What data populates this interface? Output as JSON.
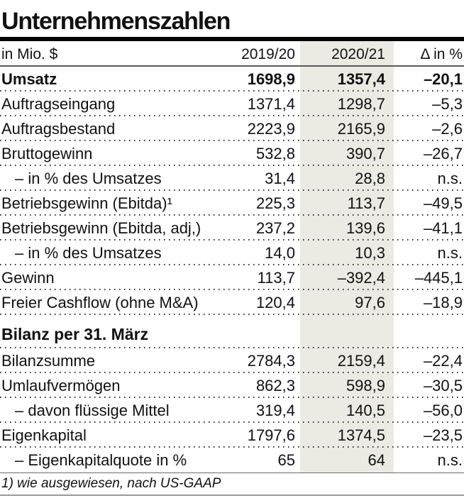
{
  "title": "Unternehmenszahlen",
  "header": {
    "unit_label": "in Mio. $",
    "columns": [
      "2019/20",
      "2020/21",
      "Δ in %"
    ]
  },
  "footnote": "1) wie ausgewiesen, nach US-GAAP",
  "colors": {
    "highlight_band": "#ebebe4",
    "heavy_rule": "#050505",
    "light_rule": "#6b6b6b",
    "text": "#111111"
  },
  "chart_data": {
    "type": "table",
    "title": "Unternehmenszahlen",
    "unit": "in Mio. $",
    "columns": [
      "2019/20",
      "2020/21",
      "Δ in %"
    ],
    "highlighted_column": "2020/21",
    "footnote": "1) wie ausgewiesen, nach US-GAAP",
    "rows": [
      {
        "label": "Umsatz",
        "bold": true,
        "values": [
          "1698,9",
          "1357,4",
          "–20,1"
        ]
      },
      {
        "label": "Auftragseingang",
        "values": [
          "1371,4",
          "1298,7",
          "–5,3"
        ]
      },
      {
        "label": "Auftragsbestand",
        "values": [
          "2223,9",
          "2165,9",
          "–2,6"
        ]
      },
      {
        "label": "Bruttogewinn",
        "values": [
          "532,8",
          "390,7",
          "–26,7"
        ]
      },
      {
        "label": "– in % des Umsatzes",
        "indent": true,
        "values": [
          "31,4",
          "28,8",
          "n.s."
        ]
      },
      {
        "label": "Betriebsgewinn (Ebitda)¹",
        "values": [
          "225,3",
          "113,7",
          "–49,5"
        ]
      },
      {
        "label": "Betriebsgewinn (Ebitda, adj,)",
        "values": [
          "237,2",
          "139,6",
          "–41,1"
        ]
      },
      {
        "label": "– in % des Umsatzes",
        "indent": true,
        "values": [
          "14,0",
          "10,3",
          "n.s."
        ]
      },
      {
        "label": "Gewinn",
        "values": [
          "113,7",
          "–392,4",
          "–445,1"
        ]
      },
      {
        "label": "Freier Cashflow (ohne M&A)",
        "values": [
          "120,4",
          "97,6",
          "–18,9"
        ]
      },
      {
        "label": "Bilanz per 31. März",
        "section": true,
        "values": [
          "",
          "",
          ""
        ]
      },
      {
        "label": "Bilanzsumme",
        "values": [
          "2784,3",
          "2159,4",
          "–22,4"
        ]
      },
      {
        "label": "Umlaufvermögen",
        "values": [
          "862,3",
          "598,9",
          "–30,5"
        ]
      },
      {
        "label": "– davon flüssige Mittel",
        "indent": true,
        "values": [
          "319,4",
          "140,5",
          "–56,0"
        ]
      },
      {
        "label": "Eigenkapital",
        "values": [
          "1797,6",
          "1374,5",
          "–23,5"
        ]
      },
      {
        "label": "– Eigenkapitalquote in %",
        "indent": true,
        "values": [
          "65",
          "64",
          "n.s."
        ]
      }
    ]
  }
}
